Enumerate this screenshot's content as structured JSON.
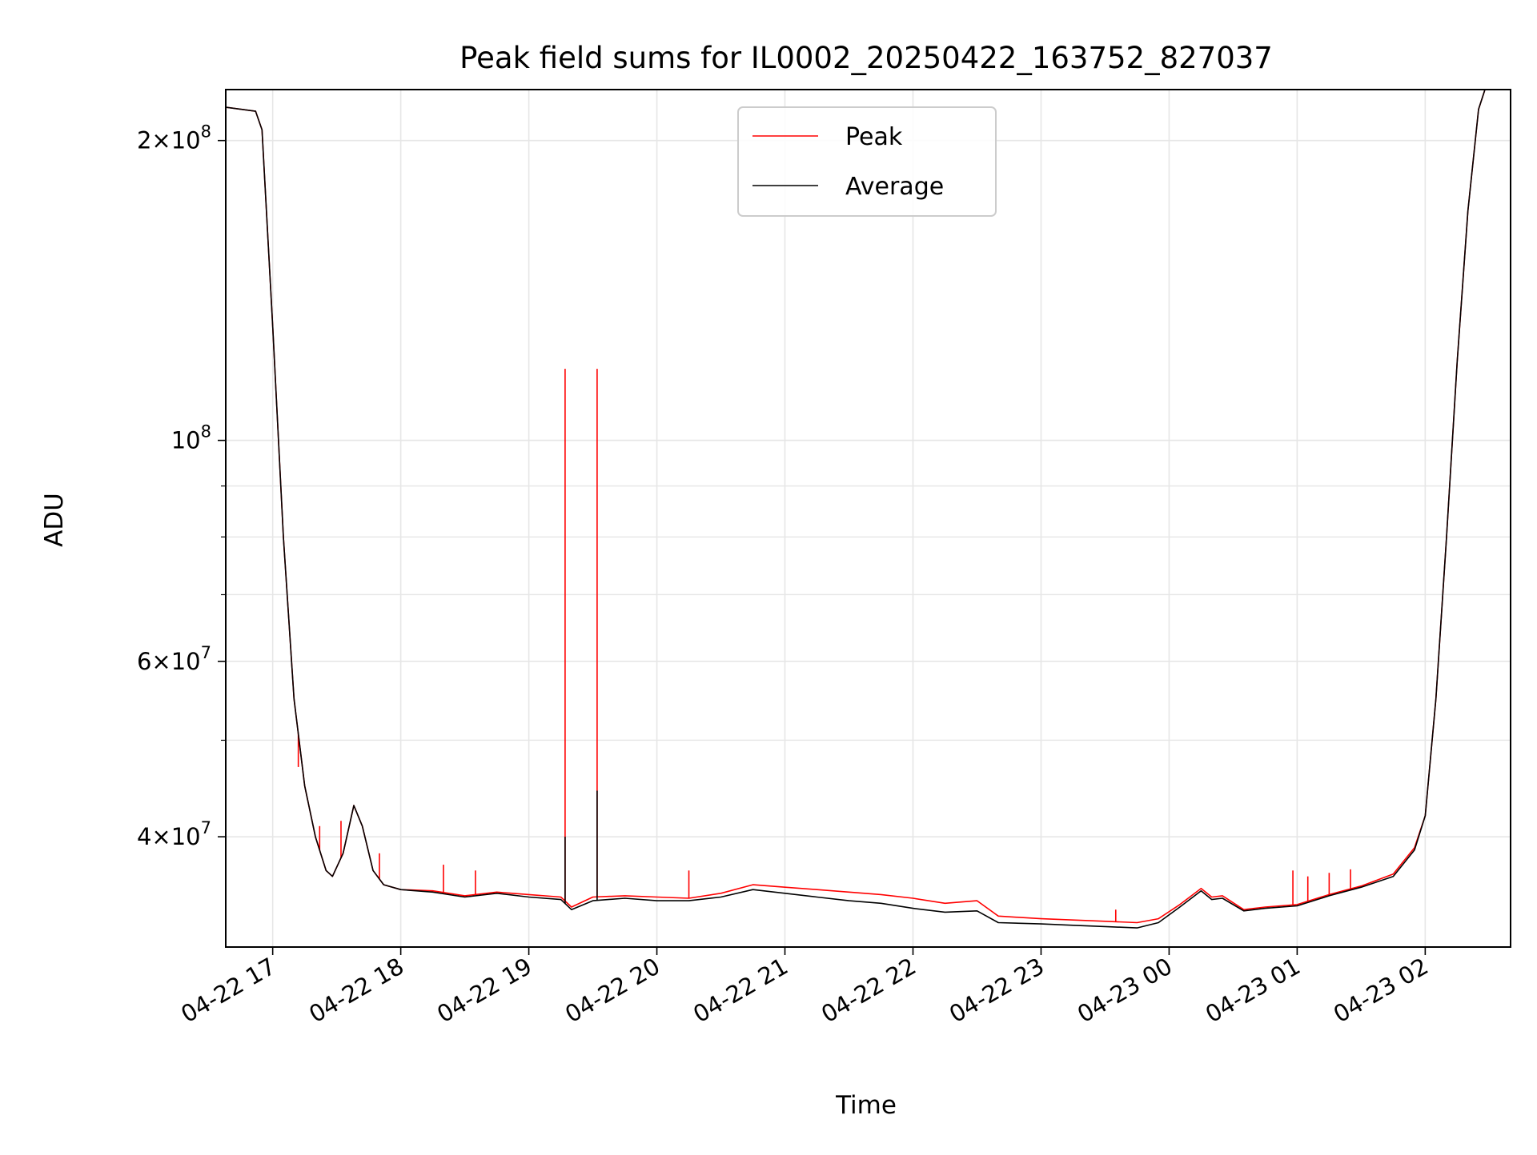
{
  "chart_data": {
    "type": "line",
    "title": "Peak field sums for IL0002_20250422_163752_827037",
    "xlabel": "Time",
    "ylabel": "ADU",
    "y_scale": "log",
    "x_axis_type": "datetime",
    "grid": true,
    "legend_position": "top-center",
    "xlim": [
      "2025-04-22 16:38",
      "2025-04-23 02:40"
    ],
    "ylim": [
      31000000,
      225000000
    ],
    "x_ticks": [
      {
        "label": "04-22 17",
        "time": "2025-04-22 17:00"
      },
      {
        "label": "04-22 18",
        "time": "2025-04-22 18:00"
      },
      {
        "label": "04-22 19",
        "time": "2025-04-22 19:00"
      },
      {
        "label": "04-22 20",
        "time": "2025-04-22 20:00"
      },
      {
        "label": "04-22 21",
        "time": "2025-04-22 21:00"
      },
      {
        "label": "04-22 22",
        "time": "2025-04-22 22:00"
      },
      {
        "label": "04-22 23",
        "time": "2025-04-22 23:00"
      },
      {
        "label": "04-23 00",
        "time": "2025-04-23 00:00"
      },
      {
        "label": "04-23 01",
        "time": "2025-04-23 01:00"
      },
      {
        "label": "04-23 02",
        "time": "2025-04-23 02:00"
      }
    ],
    "y_ticks": [
      {
        "mant": "2",
        "exp": "8",
        "value": 200000000
      },
      {
        "mant": "",
        "exp": "8",
        "value": 100000000
      },
      {
        "mant": "6",
        "exp": "7",
        "value": 60000000
      },
      {
        "mant": "4",
        "exp": "7",
        "value": 40000000
      }
    ],
    "y_minor_ticks": [
      50000000,
      70000000,
      80000000,
      90000000
    ],
    "series": [
      {
        "name": "Peak",
        "color": "#ff0000",
        "points": [
          [
            "2025-04-22 16:38",
            216000000
          ],
          [
            "2025-04-22 16:45",
            215000000
          ],
          [
            "2025-04-22 16:52",
            214000000
          ],
          [
            "2025-04-22 16:55",
            205000000
          ],
          [
            "2025-04-22 17:00",
            130000000
          ],
          [
            "2025-04-22 17:05",
            80000000
          ],
          [
            "2025-04-22 17:10",
            55000000
          ],
          [
            "2025-04-22 17:15",
            45000000
          ],
          [
            "2025-04-22 17:20",
            40000000
          ],
          [
            "2025-04-22 17:25",
            37000000
          ],
          [
            "2025-04-22 17:28",
            36500000
          ],
          [
            "2025-04-22 17:33",
            38500000
          ],
          [
            "2025-04-22 17:38",
            43000000
          ],
          [
            "2025-04-22 17:42",
            41000000
          ],
          [
            "2025-04-22 17:47",
            37000000
          ],
          [
            "2025-04-22 17:52",
            35800000
          ],
          [
            "2025-04-22 18:00",
            35400000
          ],
          [
            "2025-04-22 18:15",
            35300000
          ],
          [
            "2025-04-22 18:30",
            34900000
          ],
          [
            "2025-04-22 18:45",
            35200000
          ],
          [
            "2025-04-22 19:00",
            35000000
          ],
          [
            "2025-04-22 19:15",
            34800000
          ],
          [
            "2025-04-22 19:20",
            34000000
          ],
          [
            "2025-04-22 19:30",
            34800000
          ],
          [
            "2025-04-22 19:45",
            34900000
          ],
          [
            "2025-04-22 20:00",
            34800000
          ],
          [
            "2025-04-22 20:15",
            34700000
          ],
          [
            "2025-04-22 20:30",
            35100000
          ],
          [
            "2025-04-22 20:45",
            35800000
          ],
          [
            "2025-04-22 21:00",
            35600000
          ],
          [
            "2025-04-22 21:15",
            35400000
          ],
          [
            "2025-04-22 21:30",
            35200000
          ],
          [
            "2025-04-22 21:45",
            35000000
          ],
          [
            "2025-04-22 22:00",
            34700000
          ],
          [
            "2025-04-22 22:15",
            34300000
          ],
          [
            "2025-04-22 22:30",
            34500000
          ],
          [
            "2025-04-22 22:40",
            33300000
          ],
          [
            "2025-04-22 23:00",
            33100000
          ],
          [
            "2025-04-22 23:15",
            33000000
          ],
          [
            "2025-04-22 23:30",
            32900000
          ],
          [
            "2025-04-22 23:45",
            32800000
          ],
          [
            "2025-04-22 23:55",
            33100000
          ],
          [
            "2025-04-23 00:05",
            34200000
          ],
          [
            "2025-04-23 00:15",
            35500000
          ],
          [
            "2025-04-23 00:20",
            34800000
          ],
          [
            "2025-04-23 00:25",
            34900000
          ],
          [
            "2025-04-23 00:35",
            33800000
          ],
          [
            "2025-04-23 00:45",
            34000000
          ],
          [
            "2025-04-23 01:00",
            34200000
          ],
          [
            "2025-04-23 01:15",
            35000000
          ],
          [
            "2025-04-23 01:30",
            35700000
          ],
          [
            "2025-04-23 01:45",
            36700000
          ],
          [
            "2025-04-23 01:55",
            39000000
          ],
          [
            "2025-04-23 02:00",
            42000000
          ],
          [
            "2025-04-23 02:05",
            55000000
          ],
          [
            "2025-04-23 02:10",
            80000000
          ],
          [
            "2025-04-23 02:15",
            120000000
          ],
          [
            "2025-04-23 02:20",
            170000000
          ],
          [
            "2025-04-23 02:25",
            215000000
          ],
          [
            "2025-04-23 02:28",
            225000000
          ],
          [
            "2025-04-23 02:40",
            225000000
          ]
        ],
        "spikes": [
          [
            "2025-04-22 19:17",
            118000000
          ],
          [
            "2025-04-22 19:32",
            118000000
          ],
          [
            "2025-04-22 17:12",
            47000000
          ],
          [
            "2025-04-22 17:22",
            41000000
          ],
          [
            "2025-04-22 17:32",
            41500000
          ],
          [
            "2025-04-22 17:50",
            38500000
          ],
          [
            "2025-04-22 18:20",
            37500000
          ],
          [
            "2025-04-22 18:35",
            37000000
          ],
          [
            "2025-04-22 20:15",
            37000000
          ],
          [
            "2025-04-22 23:35",
            33800000
          ],
          [
            "2025-04-23 00:58",
            37000000
          ],
          [
            "2025-04-23 01:05",
            36500000
          ],
          [
            "2025-04-23 01:15",
            36800000
          ],
          [
            "2025-04-23 01:25",
            37100000
          ]
        ]
      },
      {
        "name": "Average",
        "color": "#000000",
        "points": [
          [
            "2025-04-22 16:38",
            216000000
          ],
          [
            "2025-04-22 16:45",
            215000000
          ],
          [
            "2025-04-22 16:52",
            214000000
          ],
          [
            "2025-04-22 16:55",
            205000000
          ],
          [
            "2025-04-22 17:00",
            130000000
          ],
          [
            "2025-04-22 17:05",
            80000000
          ],
          [
            "2025-04-22 17:10",
            55000000
          ],
          [
            "2025-04-22 17:15",
            45000000
          ],
          [
            "2025-04-22 17:20",
            40000000
          ],
          [
            "2025-04-22 17:25",
            37000000
          ],
          [
            "2025-04-22 17:28",
            36500000
          ],
          [
            "2025-04-22 17:33",
            38500000
          ],
          [
            "2025-04-22 17:38",
            43000000
          ],
          [
            "2025-04-22 17:42",
            41000000
          ],
          [
            "2025-04-22 17:47",
            37000000
          ],
          [
            "2025-04-22 17:52",
            35800000
          ],
          [
            "2025-04-22 18:00",
            35400000
          ],
          [
            "2025-04-22 18:15",
            35200000
          ],
          [
            "2025-04-22 18:30",
            34800000
          ],
          [
            "2025-04-22 18:45",
            35100000
          ],
          [
            "2025-04-22 19:00",
            34800000
          ],
          [
            "2025-04-22 19:15",
            34600000
          ],
          [
            "2025-04-22 19:20",
            33800000
          ],
          [
            "2025-04-22 19:30",
            34500000
          ],
          [
            "2025-04-22 19:45",
            34700000
          ],
          [
            "2025-04-22 20:00",
            34500000
          ],
          [
            "2025-04-22 20:15",
            34500000
          ],
          [
            "2025-04-22 20:30",
            34800000
          ],
          [
            "2025-04-22 20:45",
            35400000
          ],
          [
            "2025-04-22 21:00",
            35100000
          ],
          [
            "2025-04-22 21:15",
            34800000
          ],
          [
            "2025-04-22 21:30",
            34500000
          ],
          [
            "2025-04-22 21:45",
            34300000
          ],
          [
            "2025-04-22 22:00",
            33900000
          ],
          [
            "2025-04-22 22:15",
            33600000
          ],
          [
            "2025-04-22 22:30",
            33700000
          ],
          [
            "2025-04-22 22:40",
            32800000
          ],
          [
            "2025-04-22 23:00",
            32700000
          ],
          [
            "2025-04-22 23:15",
            32600000
          ],
          [
            "2025-04-22 23:30",
            32500000
          ],
          [
            "2025-04-22 23:45",
            32400000
          ],
          [
            "2025-04-22 23:55",
            32800000
          ],
          [
            "2025-04-23 00:05",
            34000000
          ],
          [
            "2025-04-23 00:15",
            35300000
          ],
          [
            "2025-04-23 00:20",
            34600000
          ],
          [
            "2025-04-23 00:25",
            34700000
          ],
          [
            "2025-04-23 00:35",
            33700000
          ],
          [
            "2025-04-23 00:45",
            33900000
          ],
          [
            "2025-04-23 01:00",
            34100000
          ],
          [
            "2025-04-23 01:15",
            34900000
          ],
          [
            "2025-04-23 01:30",
            35600000
          ],
          [
            "2025-04-23 01:45",
            36500000
          ],
          [
            "2025-04-23 01:55",
            38800000
          ],
          [
            "2025-04-23 02:00",
            42000000
          ],
          [
            "2025-04-23 02:05",
            55000000
          ],
          [
            "2025-04-23 02:10",
            80000000
          ],
          [
            "2025-04-23 02:15",
            120000000
          ],
          [
            "2025-04-23 02:20",
            170000000
          ],
          [
            "2025-04-23 02:25",
            215000000
          ],
          [
            "2025-04-23 02:28",
            225000000
          ],
          [
            "2025-04-23 02:40",
            225000000
          ]
        ],
        "spikes": [
          [
            "2025-04-22 19:17",
            40000000
          ],
          [
            "2025-04-22 19:32",
            44500000
          ]
        ]
      }
    ]
  }
}
